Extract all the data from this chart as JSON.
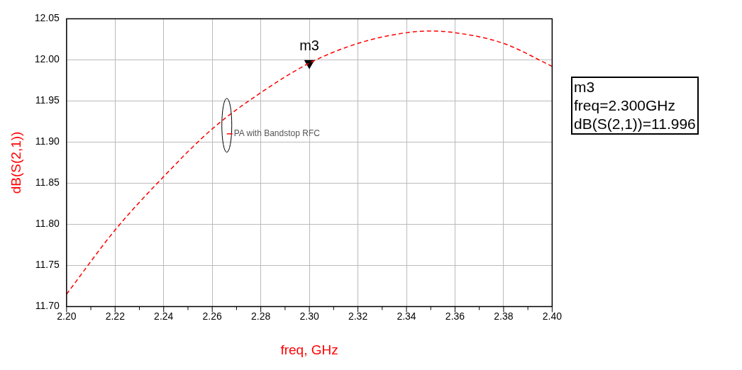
{
  "chart_data": {
    "type": "line",
    "xlabel": "freq, GHz",
    "ylabel": "dB(S(2,1))",
    "x": [
      2.2,
      2.22,
      2.24,
      2.26,
      2.28,
      2.3,
      2.32,
      2.34,
      2.35,
      2.36,
      2.38,
      2.4
    ],
    "series": [
      {
        "name": "PA with Bandstop RFC",
        "color": "#ff0000",
        "values": [
          11.715,
          11.793,
          11.858,
          11.916,
          11.96,
          11.996,
          12.02,
          12.033,
          12.035,
          12.033,
          12.02,
          11.992
        ]
      },
      {
        "type": "scatter",
        "x": [
          2.3
        ],
        "color": "#000000",
        "marker": "triangle",
        "values": [
          11.996
        ]
      }
    ],
    "xlim": [
      2.2,
      2.4
    ],
    "xticks": [
      {
        "value": 2.2,
        "label": "2.20"
      },
      2.22,
      2.24,
      2.26,
      2.28,
      {
        "value": 2.3,
        "label": "2.30"
      },
      2.32,
      2.34,
      2.36,
      2.38,
      {
        "value": 2.4,
        "label": "2.40"
      }
    ],
    "ylim": [
      11.7,
      12.05
    ],
    "yticks": [
      {
        "value": 11.7,
        "label": "11.70"
      },
      11.75,
      {
        "value": 11.8,
        "label": "11.80"
      },
      11.85,
      {
        "value": 11.9,
        "label": "11.90"
      },
      11.95,
      {
        "value": 12.0,
        "label": "12.00"
      },
      12.05
    ],
    "grid": true,
    "legend": "center",
    "marker": "none",
    "line_style": "dashed",
    "annotations": [
      {
        "text": "m3",
        "x": 2.3,
        "y": 11.996
      },
      "m3\nfreq=2.300GHz\ndB(S(2,1))=11.996"
    ]
  }
}
